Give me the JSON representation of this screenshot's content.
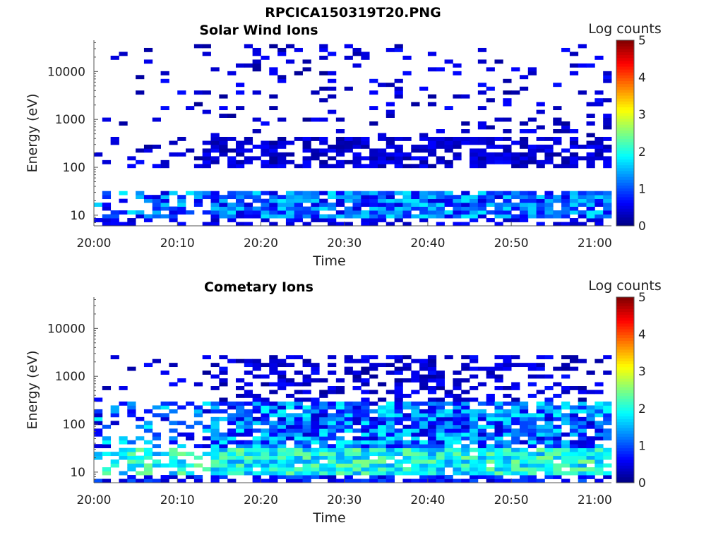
{
  "figure_title": "RPCICA150319T20.PNG",
  "colorbar_label": "Log counts",
  "chart_data": [
    {
      "type": "heatmap",
      "title": "Solar Wind Ions",
      "xlabel": "Time",
      "ylabel": "Energy (eV)",
      "x_range": [
        "20:00",
        "21:02"
      ],
      "y_scale": "log",
      "ylim": [
        6,
        45000
      ],
      "x_ticks": [
        "20:00",
        "20:10",
        "20:20",
        "20:30",
        "20:40",
        "20:50",
        "21:00"
      ],
      "y_ticks": [
        "10",
        "100",
        "1000",
        "10000"
      ],
      "colorbar": {
        "label": "Log counts",
        "min": 0,
        "max": 5,
        "ticks": [
          "0",
          "1",
          "2",
          "3",
          "4",
          "5"
        ]
      },
      "summary": {
        "low_band_eV": [
          10,
          30
        ],
        "low_band_log_counts": 1.4,
        "mid_band_eV": [
          100,
          400
        ],
        "mid_band_log_counts": 0.4,
        "sparse_high_energy_log_counts": 0.2
      }
    },
    {
      "type": "heatmap",
      "title": "Cometary Ions",
      "xlabel": "Time",
      "ylabel": "Energy (eV)",
      "x_range": [
        "20:00",
        "21:02"
      ],
      "y_scale": "log",
      "ylim": [
        6,
        45000
      ],
      "x_ticks": [
        "20:00",
        "20:10",
        "20:20",
        "20:30",
        "20:40",
        "20:50",
        "21:00"
      ],
      "y_ticks": [
        "10",
        "100",
        "1000",
        "10000"
      ],
      "colorbar": {
        "label": "Log counts",
        "min": 0,
        "max": 5,
        "ticks": [
          "0",
          "1",
          "2",
          "3",
          "4",
          "5"
        ]
      },
      "summary": {
        "low_band_eV": [
          10,
          30
        ],
        "low_band_log_counts": 2.4,
        "mid_band_eV": [
          30,
          300
        ],
        "mid_band_log_counts": 1.2,
        "upper_band_eV": [
          300,
          3000
        ],
        "upper_band_log_counts": 0.3
      }
    }
  ]
}
